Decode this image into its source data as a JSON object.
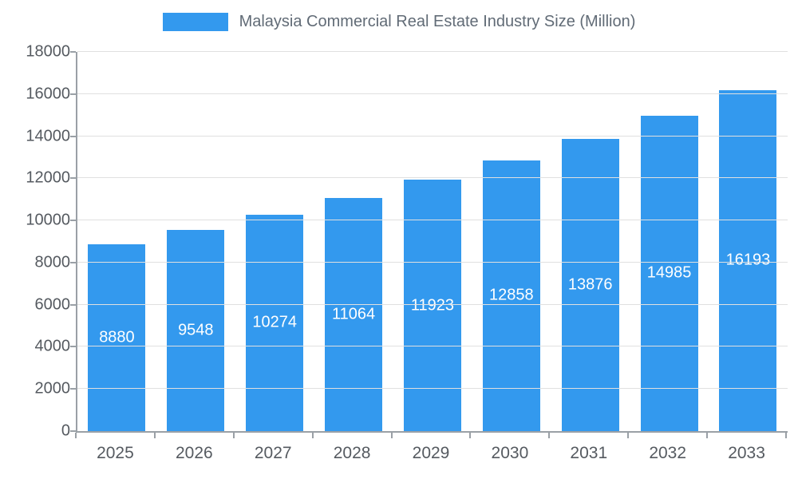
{
  "chart_data": {
    "type": "bar",
    "title": "Malaysia Commercial Real Estate Industry Size (Million)",
    "categories": [
      "2025",
      "2026",
      "2027",
      "2028",
      "2029",
      "2030",
      "2031",
      "2032",
      "2033"
    ],
    "values": [
      8880,
      9548,
      10274,
      11064,
      11923,
      12858,
      13876,
      14985,
      16193
    ],
    "xlabel": "",
    "ylabel": "",
    "ylim": [
      0,
      18000
    ],
    "y_ticks": [
      0,
      2000,
      4000,
      6000,
      8000,
      10000,
      12000,
      14000,
      16000,
      18000
    ],
    "grid": true,
    "legend_position": "top",
    "bar_color": "#3399EE",
    "value_label_color": "#ffffff"
  }
}
